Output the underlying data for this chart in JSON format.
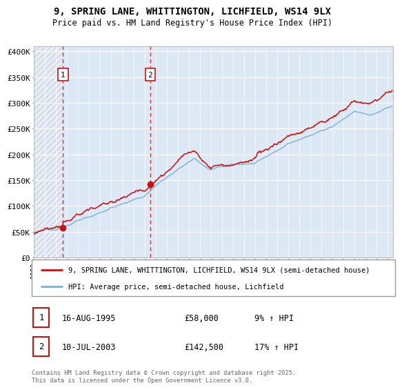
{
  "title_line1": "9, SPRING LANE, WHITTINGTON, LICHFIELD, WS14 9LX",
  "title_line2": "Price paid vs. HM Land Registry's House Price Index (HPI)",
  "background_color": "#ffffff",
  "hatch_color": "#c8d0e0",
  "hatch_bg": "#e8ecf5",
  "plot_bg_color": "#dce8f5",
  "grid_color": "#ffffff",
  "line_color_hpi": "#7ab0d4",
  "line_color_price": "#cc1111",
  "sale1_date_x": 1995.62,
  "sale1_price": 58000,
  "sale2_date_x": 2003.52,
  "sale2_price": 142500,
  "ylim_max": 410000,
  "ylim_min": 0,
  "xlim_min": 1993.0,
  "xlim_max": 2025.5,
  "legend_label_price": "9, SPRING LANE, WHITTINGTON, LICHFIELD, WS14 9LX (semi-detached house)",
  "legend_label_hpi": "HPI: Average price, semi-detached house, Lichfield",
  "annotation1_label": "1",
  "annotation2_label": "2",
  "table_row1": [
    "1",
    "16-AUG-1995",
    "£58,000",
    "9% ↑ HPI"
  ],
  "table_row2": [
    "2",
    "10-JUL-2003",
    "£142,500",
    "17% ↑ HPI"
  ],
  "footer_text": "Contains HM Land Registry data © Crown copyright and database right 2025.\nThis data is licensed under the Open Government Licence v3.0.",
  "yticks": [
    0,
    50000,
    100000,
    150000,
    200000,
    250000,
    300000,
    350000,
    400000
  ],
  "ytick_labels": [
    "£0",
    "£50K",
    "£100K",
    "£150K",
    "£200K",
    "£250K",
    "£300K",
    "£350K",
    "£400K"
  ]
}
